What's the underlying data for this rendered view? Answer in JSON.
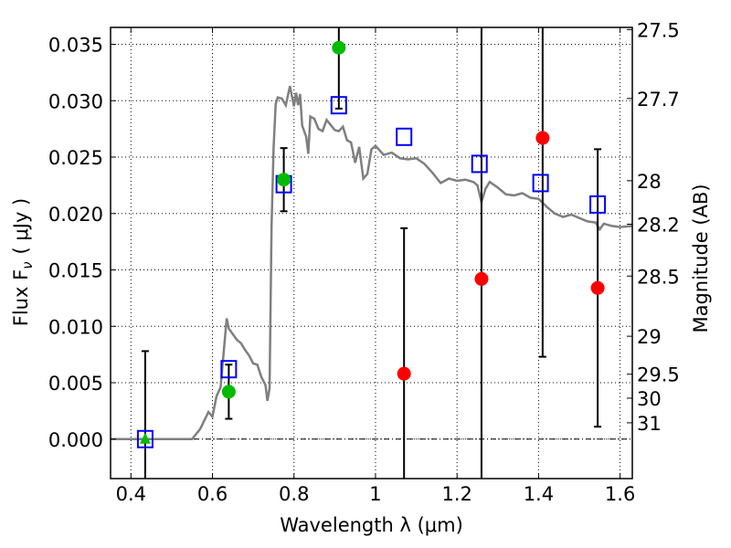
{
  "chart_data": {
    "type": "scatter",
    "xlabel": "Wavelength  λ (μm)",
    "ylabel": "Flux  F",
    "ylabel_sub": "ν",
    "ylabel_unit": "( μJy )",
    "ylabel_right": "Magnitude (AB)",
    "xlim": [
      0.35,
      1.63
    ],
    "ylim": [
      -0.0035,
      0.0365
    ],
    "x_ticks": [
      0.4,
      0.6,
      0.8,
      1.0,
      1.2,
      1.4,
      1.6
    ],
    "x_tick_labels": [
      "0.4",
      "0.6",
      "0.8",
      "1",
      "1.2",
      "1.4",
      "1.6"
    ],
    "y_ticks": [
      0.0,
      0.005,
      0.01,
      0.015,
      0.02,
      0.025,
      0.03,
      0.035
    ],
    "y_tick_labels": [
      "0.000",
      "0.005",
      "0.010",
      "0.015",
      "0.020",
      "0.025",
      "0.030",
      "0.035"
    ],
    "right_ticks": [
      {
        "label": "27.5",
        "mag": 27.5
      },
      {
        "label": "27.7",
        "mag": 27.7
      },
      {
        "label": "28",
        "mag": 28.0
      },
      {
        "label": "28.2",
        "mag": 28.2
      },
      {
        "label": "28.5",
        "mag": 28.5
      },
      {
        "label": "29",
        "mag": 29.0
      },
      {
        "label": "29.5",
        "mag": 29.5
      },
      {
        "label": "30",
        "mag": 30.0
      },
      {
        "label": "31",
        "mag": 31.0
      }
    ],
    "grid": true,
    "zero_line": true,
    "series": [
      {
        "marker": "square-open",
        "color": "#0000ff",
        "points": [
          {
            "x": 0.435,
            "y": 0.0
          },
          {
            "x": 0.64,
            "y": 0.0062
          },
          {
            "x": 0.775,
            "y": 0.0226
          },
          {
            "x": 0.91,
            "y": 0.0296
          },
          {
            "x": 1.07,
            "y": 0.0268
          },
          {
            "x": 1.255,
            "y": 0.0244
          },
          {
            "x": 1.405,
            "y": 0.0227
          },
          {
            "x": 1.545,
            "y": 0.0208
          }
        ]
      },
      {
        "marker": "circle",
        "color": "#00bb00",
        "points": [
          {
            "x": 0.64,
            "y": 0.0042,
            "err_lo": 0.0018,
            "err_hi": 0.0066
          },
          {
            "x": 0.775,
            "y": 0.023,
            "err_lo": 0.0202,
            "err_hi": 0.0258
          },
          {
            "x": 0.91,
            "y": 0.0347,
            "err_lo": 0.0293,
            "err_hi": 0.0365
          }
        ]
      },
      {
        "marker": "triangle",
        "color": "#00bb00",
        "points": [
          {
            "x": 0.435,
            "y": 0.0,
            "err_lo": -0.0035,
            "err_hi": 0.0078
          }
        ]
      },
      {
        "marker": "circle",
        "color": "#ff0000",
        "points": [
          {
            "x": 1.07,
            "y": 0.0058,
            "err_lo": -0.0035,
            "err_hi": 0.0187
          },
          {
            "x": 1.26,
            "y": 0.0142,
            "err_lo": -0.0035,
            "err_hi": 0.0365
          },
          {
            "x": 1.41,
            "y": 0.0267,
            "err_lo": 0.0073,
            "err_hi": 0.0365
          },
          {
            "x": 1.545,
            "y": 0.0134,
            "err_lo": 0.0011,
            "err_hi": 0.0257
          }
        ]
      }
    ],
    "model_spectrum": {
      "color": "#7f7f7f",
      "x": [
        0.35,
        0.55,
        0.57,
        0.59,
        0.6,
        0.61,
        0.62,
        0.63,
        0.635,
        0.64,
        0.65,
        0.66,
        0.67,
        0.68,
        0.69,
        0.7,
        0.71,
        0.72,
        0.73,
        0.735,
        0.74,
        0.745,
        0.75,
        0.755,
        0.76,
        0.77,
        0.78,
        0.79,
        0.8,
        0.805,
        0.81,
        0.815,
        0.82,
        0.83,
        0.835,
        0.84,
        0.85,
        0.86,
        0.87,
        0.88,
        0.9,
        0.91,
        0.92,
        0.93,
        0.94,
        0.95,
        0.96,
        0.97,
        0.98,
        0.99,
        1.0,
        1.02,
        1.04,
        1.06,
        1.08,
        1.1,
        1.12,
        1.14,
        1.16,
        1.18,
        1.2,
        1.22,
        1.24,
        1.25,
        1.26,
        1.27,
        1.28,
        1.3,
        1.32,
        1.34,
        1.36,
        1.38,
        1.4,
        1.42,
        1.44,
        1.46,
        1.48,
        1.5,
        1.52,
        1.54,
        1.55,
        1.56,
        1.58,
        1.6,
        1.63
      ],
      "y": [
        0.0,
        0.0,
        0.0009,
        0.0024,
        0.002,
        0.0038,
        0.0046,
        0.0087,
        0.0107,
        0.0098,
        0.0093,
        0.0088,
        0.0085,
        0.0079,
        0.0074,
        0.0067,
        0.0066,
        0.0055,
        0.0048,
        0.0034,
        0.0045,
        0.0189,
        0.0258,
        0.0297,
        0.0303,
        0.0302,
        0.0296,
        0.0313,
        0.0295,
        0.0307,
        0.0296,
        0.0306,
        0.0278,
        0.0268,
        0.0253,
        0.0286,
        0.0284,
        0.0275,
        0.0273,
        0.0283,
        0.0274,
        0.0273,
        0.0277,
        0.0265,
        0.0263,
        0.0245,
        0.0259,
        0.0231,
        0.0235,
        0.0257,
        0.026,
        0.0252,
        0.0254,
        0.0249,
        0.0248,
        0.0249,
        0.0244,
        0.0236,
        0.0227,
        0.0231,
        0.0229,
        0.023,
        0.0228,
        0.0225,
        0.021,
        0.0222,
        0.0228,
        0.0223,
        0.0217,
        0.0216,
        0.0218,
        0.0214,
        0.0213,
        0.0206,
        0.02,
        0.0197,
        0.0199,
        0.0196,
        0.0193,
        0.0192,
        0.0186,
        0.0191,
        0.0189,
        0.0188,
        0.0189
      ]
    }
  }
}
